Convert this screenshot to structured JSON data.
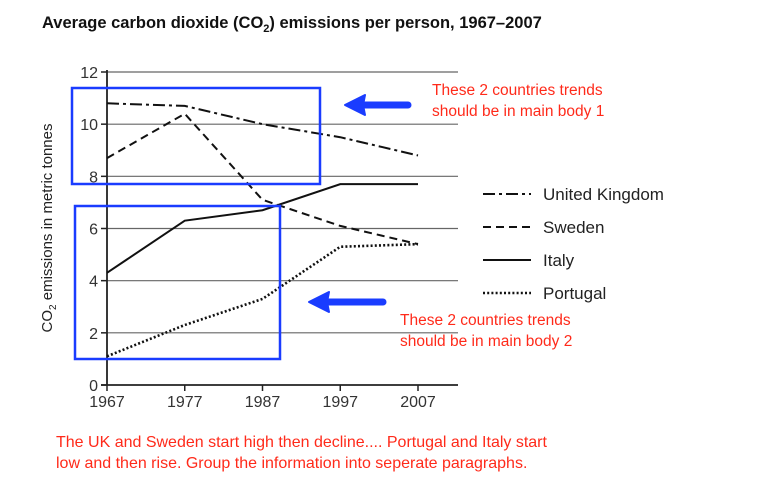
{
  "chart_data": {
    "type": "line",
    "title_pre": "Average carbon dioxide (CO",
    "title_sub": "2",
    "title_post": ") emissions per person, 1967–2007",
    "ylabel_pre": "CO",
    "ylabel_sub": "2",
    "ylabel_post": " emissions in metric tonnes",
    "xlabel": "",
    "x": [
      1967,
      1977,
      1987,
      1997,
      2007
    ],
    "x_tick_labels": [
      "1967",
      "1977",
      "1987",
      "1997",
      "2007"
    ],
    "ylim": [
      0,
      12
    ],
    "y_ticks": [
      0,
      2,
      4,
      6,
      8,
      10,
      12
    ],
    "y_tick_labels": [
      "0",
      "2",
      "4",
      "6",
      "8",
      "10",
      "12"
    ],
    "grid": "horizontal",
    "legend_position": "right",
    "series": [
      {
        "name": "United Kingdom",
        "style": "dash-dot",
        "values": [
          10.8,
          10.7,
          10.0,
          9.5,
          8.8
        ]
      },
      {
        "name": "Sweden",
        "style": "dashed",
        "values": [
          8.7,
          10.4,
          7.1,
          6.1,
          5.4
        ]
      },
      {
        "name": "Italy",
        "style": "solid",
        "values": [
          4.3,
          6.3,
          6.7,
          7.7,
          7.7
        ]
      },
      {
        "name": "Portugal",
        "style": "dotted",
        "values": [
          1.1,
          2.3,
          3.3,
          5.3,
          5.4
        ]
      }
    ]
  },
  "annotations": {
    "note1": [
      "These 2 countries trends",
      "should be in main body 1"
    ],
    "note2": [
      "These 2 countries trends",
      "should be in main body 2"
    ],
    "bottom": [
      "The UK and Sweden start high then decline.... Portugal and Italy start",
      "low and then rise. Group the information into seperate paragraphs."
    ],
    "highlight_color": "#1a3cff",
    "note_color": "#ff2a1a"
  }
}
